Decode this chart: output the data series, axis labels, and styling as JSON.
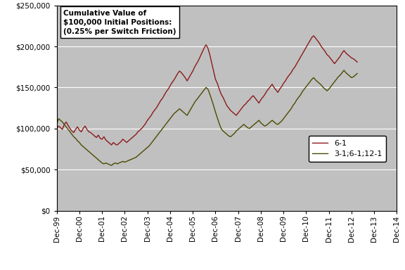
{
  "title_lines": [
    "Cumulative Value of",
    "$100,000 Initial Positions:",
    "(0.25% per Switch Friction)"
  ],
  "background_color": "#C0C0C0",
  "outer_bg_color": "#FFFFFF",
  "line1_color": "#8B1A1A",
  "line2_color": "#4B4B00",
  "line1_label": "6-1",
  "line2_label": "3-1;6-1;12-1",
  "ylim": [
    0,
    250000
  ],
  "yticks": [
    0,
    50000,
    100000,
    150000,
    200000,
    250000
  ],
  "xtick_labels": [
    "Dec-99",
    "Dec-00",
    "Dec-01",
    "Dec-02",
    "Dec-03",
    "Dec-04",
    "Dec-05",
    "Dec-06",
    "Dec-07",
    "Dec-08",
    "Dec-09",
    "Dec-10",
    "Dec-11",
    "Dec-12",
    "Dec-13",
    "Dec-14"
  ],
  "line1_values": [
    100000,
    103000,
    101000,
    99000,
    105000,
    108000,
    104000,
    100000,
    97000,
    95000,
    99000,
    102000,
    98000,
    96000,
    100000,
    103000,
    99000,
    96000,
    95000,
    93000,
    91000,
    89000,
    92000,
    88000,
    87000,
    90000,
    86000,
    84000,
    82000,
    80000,
    83000,
    81000,
    80000,
    82000,
    84000,
    87000,
    85000,
    83000,
    85000,
    87000,
    89000,
    91000,
    93000,
    96000,
    98000,
    100000,
    103000,
    106000,
    110000,
    113000,
    116000,
    120000,
    123000,
    126000,
    130000,
    134000,
    137000,
    141000,
    145000,
    148000,
    152000,
    156000,
    159000,
    163000,
    167000,
    170000,
    168000,
    165000,
    162000,
    158000,
    162000,
    166000,
    170000,
    175000,
    179000,
    183000,
    188000,
    193000,
    198000,
    202000,
    198000,
    190000,
    180000,
    170000,
    160000,
    155000,
    148000,
    142000,
    138000,
    133000,
    128000,
    125000,
    122000,
    120000,
    118000,
    116000,
    119000,
    122000,
    125000,
    128000,
    130000,
    133000,
    135000,
    138000,
    140000,
    137000,
    134000,
    131000,
    135000,
    138000,
    141000,
    145000,
    148000,
    151000,
    154000,
    150000,
    147000,
    144000,
    148000,
    151000,
    155000,
    158000,
    162000,
    165000,
    168000,
    172000,
    175000,
    179000,
    183000,
    187000,
    191000,
    195000,
    199000,
    203000,
    207000,
    211000,
    213000,
    210000,
    207000,
    204000,
    200000,
    197000,
    194000,
    190000,
    188000,
    185000,
    182000,
    179000,
    182000,
    185000,
    188000,
    192000,
    195000,
    192000,
    190000,
    188000,
    186000,
    185000,
    183000,
    181000
  ],
  "line2_values": [
    105000,
    112000,
    110000,
    108000,
    105000,
    102000,
    99000,
    96000,
    93000,
    90000,
    88000,
    85000,
    83000,
    80000,
    78000,
    76000,
    74000,
    72000,
    70000,
    68000,
    66000,
    64000,
    62000,
    60000,
    58000,
    57000,
    58000,
    57000,
    56000,
    55000,
    57000,
    58000,
    57000,
    58000,
    59000,
    60000,
    59000,
    60000,
    61000,
    62000,
    63000,
    64000,
    65000,
    67000,
    69000,
    71000,
    73000,
    75000,
    77000,
    79000,
    82000,
    85000,
    88000,
    91000,
    94000,
    97000,
    100000,
    103000,
    106000,
    109000,
    112000,
    115000,
    118000,
    120000,
    122000,
    124000,
    122000,
    120000,
    118000,
    116000,
    120000,
    124000,
    128000,
    132000,
    135000,
    138000,
    141000,
    144000,
    147000,
    150000,
    148000,
    142000,
    135000,
    128000,
    120000,
    113000,
    106000,
    100000,
    97000,
    95000,
    93000,
    91000,
    90000,
    92000,
    94000,
    97000,
    99000,
    101000,
    103000,
    105000,
    103000,
    101000,
    100000,
    102000,
    104000,
    106000,
    108000,
    110000,
    107000,
    105000,
    103000,
    104000,
    106000,
    108000,
    110000,
    108000,
    106000,
    105000,
    107000,
    109000,
    112000,
    115000,
    118000,
    121000,
    124000,
    128000,
    131000,
    135000,
    138000,
    141000,
    145000,
    148000,
    151000,
    154000,
    157000,
    160000,
    162000,
    159000,
    157000,
    155000,
    153000,
    150000,
    148000,
    146000,
    148000,
    151000,
    154000,
    157000,
    160000,
    163000,
    165000,
    168000,
    171000,
    168000,
    166000,
    164000,
    162000,
    163000,
    165000,
    167000
  ]
}
